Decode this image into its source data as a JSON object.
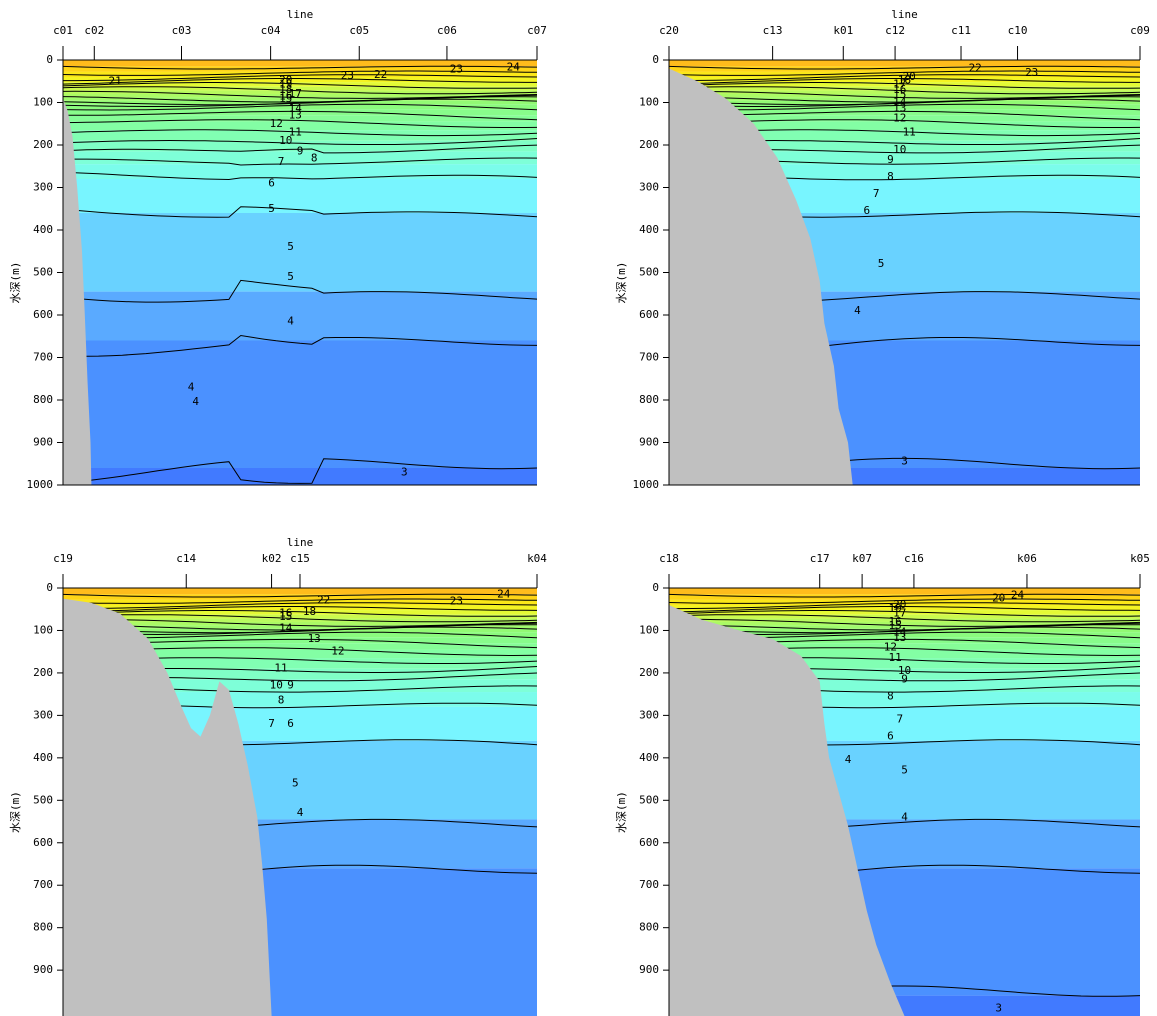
{
  "chart_data": [
    {
      "type": "contour",
      "top_label": "line",
      "ylabel": "水深(m)",
      "ylim": [
        0,
        1000
      ],
      "yticks": [
        0,
        100,
        200,
        300,
        400,
        500,
        600,
        700,
        800,
        900,
        1000
      ],
      "stations": [
        {
          "name": "c01",
          "pos": 0.0
        },
        {
          "name": "c02",
          "pos": 0.066
        },
        {
          "name": "c03",
          "pos": 0.25
        },
        {
          "name": "c04",
          "pos": 0.438
        },
        {
          "name": "c05",
          "pos": 0.625
        },
        {
          "name": "c06",
          "pos": 0.81
        },
        {
          "name": "c07",
          "pos": 1.0
        }
      ],
      "isotherms": [
        {
          "value": 24,
          "depth": 15
        },
        {
          "value": 23,
          "depth": 28
        },
        {
          "value": 22,
          "depth": 40
        },
        {
          "value": 21,
          "depth": 52
        },
        {
          "value": 20,
          "depth": 63
        },
        {
          "value": 19,
          "depth": 72
        },
        {
          "value": 18,
          "depth": 80
        },
        {
          "value": 17,
          "depth": 88
        },
        {
          "value": 16,
          "depth": 96
        },
        {
          "value": 15,
          "depth": 104
        },
        {
          "value": 14,
          "depth": 116
        },
        {
          "value": 13,
          "depth": 130
        },
        {
          "value": 12,
          "depth": 145
        },
        {
          "value": 11,
          "depth": 165
        },
        {
          "value": 10,
          "depth": 190
        },
        {
          "value": 9,
          "depth": 215
        },
        {
          "value": 8,
          "depth": 245
        },
        {
          "value": 7,
          "depth": 280
        },
        {
          "value": 6,
          "depth": 360
        },
        {
          "value": 5,
          "depth": 545
        },
        {
          "value": 4,
          "depth": 660
        },
        {
          "value": 3,
          "depth": 960
        }
      ],
      "labels": [
        {
          "text": "21",
          "pos": 0.11,
          "depth": 50
        },
        {
          "text": "20",
          "pos": 0.47,
          "depth": 48
        },
        {
          "text": "19",
          "pos": 0.47,
          "depth": 58
        },
        {
          "text": "18",
          "pos": 0.47,
          "depth": 70
        },
        {
          "text": "17",
          "pos": 0.49,
          "depth": 80
        },
        {
          "text": "16",
          "pos": 0.47,
          "depth": 86
        },
        {
          "text": "15",
          "pos": 0.47,
          "depth": 92
        },
        {
          "text": "14",
          "pos": 0.49,
          "depth": 115
        },
        {
          "text": "13",
          "pos": 0.49,
          "depth": 130
        },
        {
          "text": "12",
          "pos": 0.45,
          "depth": 150
        },
        {
          "text": "11",
          "pos": 0.49,
          "depth": 170
        },
        {
          "text": "10",
          "pos": 0.47,
          "depth": 190
        },
        {
          "text": "9",
          "pos": 0.5,
          "depth": 215
        },
        {
          "text": "8",
          "pos": 0.53,
          "depth": 232
        },
        {
          "text": "7",
          "pos": 0.46,
          "depth": 240
        },
        {
          "text": "6",
          "pos": 0.44,
          "depth": 290
        },
        {
          "text": "5",
          "pos": 0.44,
          "depth": 350
        },
        {
          "text": "5",
          "pos": 0.48,
          "depth": 440
        },
        {
          "text": "5",
          "pos": 0.48,
          "depth": 510
        },
        {
          "text": "4",
          "pos": 0.48,
          "depth": 615
        },
        {
          "text": "4",
          "pos": 0.27,
          "depth": 770
        },
        {
          "text": "4",
          "pos": 0.28,
          "depth": 805
        },
        {
          "text": "3",
          "pos": 0.72,
          "depth": 970
        },
        {
          "text": "22",
          "pos": 0.67,
          "depth": 35
        },
        {
          "text": "23",
          "pos": 0.6,
          "depth": 38
        },
        {
          "text": "23",
          "pos": 0.83,
          "depth": 22
        },
        {
          "text": "24",
          "pos": 0.95,
          "depth": 18
        }
      ]
    },
    {
      "type": "contour",
      "top_label": "line",
      "ylabel": "水深(m)",
      "ylim": [
        0,
        1000
      ],
      "yticks": [
        0,
        100,
        200,
        300,
        400,
        500,
        600,
        700,
        800,
        900,
        1000
      ],
      "stations": [
        {
          "name": "c20",
          "pos": 0.0
        },
        {
          "name": "c13",
          "pos": 0.22
        },
        {
          "name": "k01",
          "pos": 0.37
        },
        {
          "name": "c12",
          "pos": 0.48
        },
        {
          "name": "c11",
          "pos": 0.62
        },
        {
          "name": "c10",
          "pos": 0.74
        },
        {
          "name": "c09",
          "pos": 1.0
        }
      ],
      "isotherms": [
        {
          "value": 24,
          "depth": 15
        },
        {
          "value": 23,
          "depth": 28
        },
        {
          "value": 22,
          "depth": 40
        },
        {
          "value": 21,
          "depth": 52
        },
        {
          "value": 20,
          "depth": 63
        },
        {
          "value": 19,
          "depth": 72
        },
        {
          "value": 18,
          "depth": 80
        },
        {
          "value": 17,
          "depth": 88
        },
        {
          "value": 16,
          "depth": 96
        },
        {
          "value": 15,
          "depth": 104
        },
        {
          "value": 14,
          "depth": 116
        },
        {
          "value": 13,
          "depth": 130
        },
        {
          "value": 12,
          "depth": 145
        },
        {
          "value": 11,
          "depth": 165
        },
        {
          "value": 10,
          "depth": 190
        },
        {
          "value": 9,
          "depth": 215
        },
        {
          "value": 8,
          "depth": 245
        },
        {
          "value": 7,
          "depth": 280
        },
        {
          "value": 6,
          "depth": 360
        },
        {
          "value": 5,
          "depth": 545
        },
        {
          "value": 4,
          "depth": 660
        },
        {
          "value": 3,
          "depth": 960
        }
      ],
      "labels": [
        {
          "text": "20",
          "pos": 0.51,
          "depth": 40
        },
        {
          "text": "18",
          "pos": 0.5,
          "depth": 48
        },
        {
          "text": "17",
          "pos": 0.49,
          "depth": 58
        },
        {
          "text": "16",
          "pos": 0.49,
          "depth": 70
        },
        {
          "text": "15",
          "pos": 0.49,
          "depth": 82
        },
        {
          "text": "14",
          "pos": 0.49,
          "depth": 100
        },
        {
          "text": "13",
          "pos": 0.49,
          "depth": 114
        },
        {
          "text": "12",
          "pos": 0.49,
          "depth": 138
        },
        {
          "text": "11",
          "pos": 0.51,
          "depth": 170
        },
        {
          "text": "10",
          "pos": 0.49,
          "depth": 212
        },
        {
          "text": "9",
          "pos": 0.47,
          "depth": 235
        },
        {
          "text": "8",
          "pos": 0.47,
          "depth": 275
        },
        {
          "text": "7",
          "pos": 0.44,
          "depth": 315
        },
        {
          "text": "6",
          "pos": 0.42,
          "depth": 355
        },
        {
          "text": "5",
          "pos": 0.45,
          "depth": 480
        },
        {
          "text": "4",
          "pos": 0.4,
          "depth": 590
        },
        {
          "text": "3",
          "pos": 0.5,
          "depth": 945
        },
        {
          "text": "22",
          "pos": 0.65,
          "depth": 20
        },
        {
          "text": "23",
          "pos": 0.77,
          "depth": 30
        }
      ]
    },
    {
      "type": "contour",
      "top_label": "line",
      "ylabel": "水深(m)",
      "ylim": [
        0,
        1000
      ],
      "yticks": [
        0,
        100,
        200,
        300,
        400,
        500,
        600,
        700,
        800,
        900
      ],
      "stations": [
        {
          "name": "c19",
          "pos": 0.0
        },
        {
          "name": "c14",
          "pos": 0.26
        },
        {
          "name": "k02",
          "pos": 0.44
        },
        {
          "name": "c15",
          "pos": 0.5
        },
        {
          "name": "k04",
          "pos": 1.0
        }
      ],
      "isotherms": [
        {
          "value": 24,
          "depth": 15
        },
        {
          "value": 23,
          "depth": 28
        },
        {
          "value": 22,
          "depth": 40
        },
        {
          "value": 21,
          "depth": 52
        },
        {
          "value": 20,
          "depth": 63
        },
        {
          "value": 19,
          "depth": 72
        },
        {
          "value": 18,
          "depth": 80
        },
        {
          "value": 17,
          "depth": 88
        },
        {
          "value": 16,
          "depth": 96
        },
        {
          "value": 15,
          "depth": 104
        },
        {
          "value": 14,
          "depth": 116
        },
        {
          "value": 13,
          "depth": 130
        },
        {
          "value": 12,
          "depth": 145
        },
        {
          "value": 11,
          "depth": 165
        },
        {
          "value": 10,
          "depth": 190
        },
        {
          "value": 9,
          "depth": 215
        },
        {
          "value": 8,
          "depth": 245
        },
        {
          "value": 7,
          "depth": 280
        },
        {
          "value": 6,
          "depth": 360
        },
        {
          "value": 5,
          "depth": 545
        },
        {
          "value": 4,
          "depth": 660
        }
      ],
      "labels": [
        {
          "text": "22",
          "pos": 0.55,
          "depth": 30
        },
        {
          "text": "23",
          "pos": 0.83,
          "depth": 32
        },
        {
          "text": "24",
          "pos": 0.93,
          "depth": 15
        },
        {
          "text": "18",
          "pos": 0.52,
          "depth": 57
        },
        {
          "text": "16",
          "pos": 0.47,
          "depth": 60
        },
        {
          "text": "15",
          "pos": 0.47,
          "depth": 68
        },
        {
          "text": "14",
          "pos": 0.47,
          "depth": 95
        },
        {
          "text": "13",
          "pos": 0.53,
          "depth": 120
        },
        {
          "text": "12",
          "pos": 0.58,
          "depth": 150
        },
        {
          "text": "11",
          "pos": 0.46,
          "depth": 190
        },
        {
          "text": "10",
          "pos": 0.45,
          "depth": 230
        },
        {
          "text": "9",
          "pos": 0.48,
          "depth": 230
        },
        {
          "text": "8",
          "pos": 0.46,
          "depth": 265
        },
        {
          "text": "7",
          "pos": 0.44,
          "depth": 320
        },
        {
          "text": "6",
          "pos": 0.48,
          "depth": 320
        },
        {
          "text": "5",
          "pos": 0.49,
          "depth": 460
        },
        {
          "text": "4",
          "pos": 0.5,
          "depth": 530
        }
      ]
    },
    {
      "type": "contour",
      "top_label": "",
      "ylabel": "水深(m)",
      "ylim": [
        0,
        1000
      ],
      "yticks": [
        0,
        100,
        200,
        300,
        400,
        500,
        600,
        700,
        800,
        900
      ],
      "stations": [
        {
          "name": "c18",
          "pos": 0.0
        },
        {
          "name": "c17",
          "pos": 0.32
        },
        {
          "name": "k07",
          "pos": 0.41
        },
        {
          "name": "c16",
          "pos": 0.52
        },
        {
          "name": "k06",
          "pos": 0.76
        },
        {
          "name": "k05",
          "pos": 1.0
        }
      ],
      "isotherms": [
        {
          "value": 24,
          "depth": 15
        },
        {
          "value": 23,
          "depth": 28
        },
        {
          "value": 22,
          "depth": 40
        },
        {
          "value": 21,
          "depth": 52
        },
        {
          "value": 20,
          "depth": 63
        },
        {
          "value": 19,
          "depth": 72
        },
        {
          "value": 18,
          "depth": 80
        },
        {
          "value": 17,
          "depth": 88
        },
        {
          "value": 16,
          "depth": 96
        },
        {
          "value": 15,
          "depth": 104
        },
        {
          "value": 14,
          "depth": 116
        },
        {
          "value": 13,
          "depth": 130
        },
        {
          "value": 12,
          "depth": 145
        },
        {
          "value": 11,
          "depth": 165
        },
        {
          "value": 10,
          "depth": 190
        },
        {
          "value": 9,
          "depth": 215
        },
        {
          "value": 8,
          "depth": 245
        },
        {
          "value": 7,
          "depth": 280
        },
        {
          "value": 6,
          "depth": 360
        },
        {
          "value": 5,
          "depth": 545
        },
        {
          "value": 4,
          "depth": 660
        },
        {
          "value": 3,
          "depth": 960
        }
      ],
      "labels": [
        {
          "text": "20",
          "pos": 0.7,
          "depth": 25
        },
        {
          "text": "24",
          "pos": 0.74,
          "depth": 18
        },
        {
          "text": "20",
          "pos": 0.49,
          "depth": 40
        },
        {
          "text": "19",
          "pos": 0.48,
          "depth": 50
        },
        {
          "text": "17",
          "pos": 0.49,
          "depth": 60
        },
        {
          "text": "16",
          "pos": 0.48,
          "depth": 80
        },
        {
          "text": "15",
          "pos": 0.48,
          "depth": 90
        },
        {
          "text": "14",
          "pos": 0.49,
          "depth": 105
        },
        {
          "text": "13",
          "pos": 0.49,
          "depth": 118
        },
        {
          "text": "12",
          "pos": 0.47,
          "depth": 140
        },
        {
          "text": "11",
          "pos": 0.48,
          "depth": 165
        },
        {
          "text": "10",
          "pos": 0.5,
          "depth": 195
        },
        {
          "text": "9",
          "pos": 0.5,
          "depth": 215
        },
        {
          "text": "8",
          "pos": 0.47,
          "depth": 255
        },
        {
          "text": "7",
          "pos": 0.49,
          "depth": 310
        },
        {
          "text": "6",
          "pos": 0.47,
          "depth": 350
        },
        {
          "text": "5",
          "pos": 0.5,
          "depth": 430
        },
        {
          "text": "4",
          "pos": 0.38,
          "depth": 405
        },
        {
          "text": "4",
          "pos": 0.5,
          "depth": 540
        },
        {
          "text": "3",
          "pos": 0.7,
          "depth": 990
        }
      ]
    }
  ]
}
